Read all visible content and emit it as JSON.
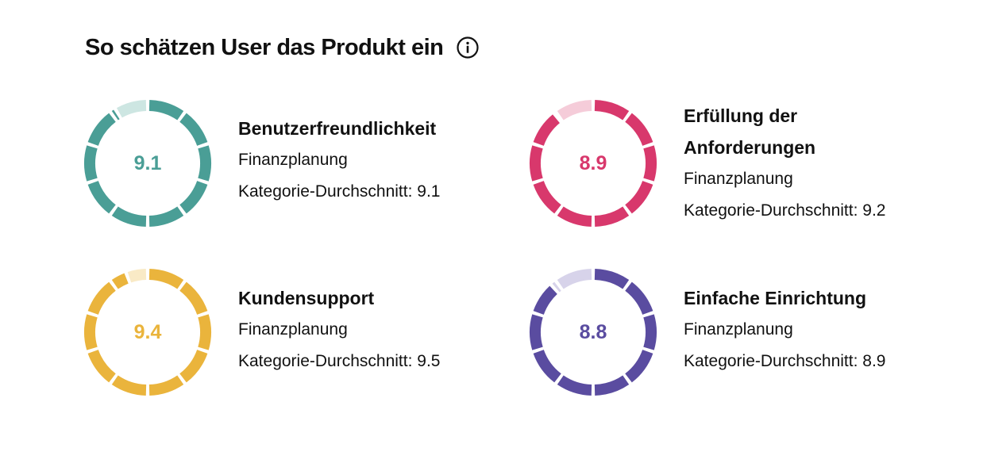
{
  "header": {
    "title": "So schätzen User das Produkt ein",
    "info_icon": "info-circle-icon"
  },
  "ratings": [
    {
      "label": "Benutzerfreundlichkeit",
      "score": "9.1",
      "category": "Finanzplanung",
      "avg_prefix": "Kategorie-Durchschnitt: ",
      "avg": "9.1",
      "score_value": 9.1,
      "color": "#4a9e96",
      "track_color": "#cde6e2"
    },
    {
      "label": "Erfüllung der Anforderungen",
      "score": "8.9",
      "category": "Finanzplanung",
      "avg_prefix": "Kategorie-Durchschnitt: ",
      "avg": "9.2",
      "score_value": 8.9,
      "color": "#d8386c",
      "track_color": "#f5ccd9"
    },
    {
      "label": "Kundensupport",
      "score": "9.4",
      "category": "Finanzplanung",
      "avg_prefix": "Kategorie-Durchschnitt: ",
      "avg": "9.5",
      "score_value": 9.4,
      "color": "#eab43c",
      "track_color": "#f9eac6"
    },
    {
      "label": "Einfache Einrichtung",
      "score": "8.8",
      "category": "Finanzplanung",
      "avg_prefix": "Kategorie-Durchschnitt: ",
      "avg": "8.9",
      "score_value": 8.8,
      "color": "#5a4ca0",
      "track_color": "#d7d3ea"
    }
  ]
}
